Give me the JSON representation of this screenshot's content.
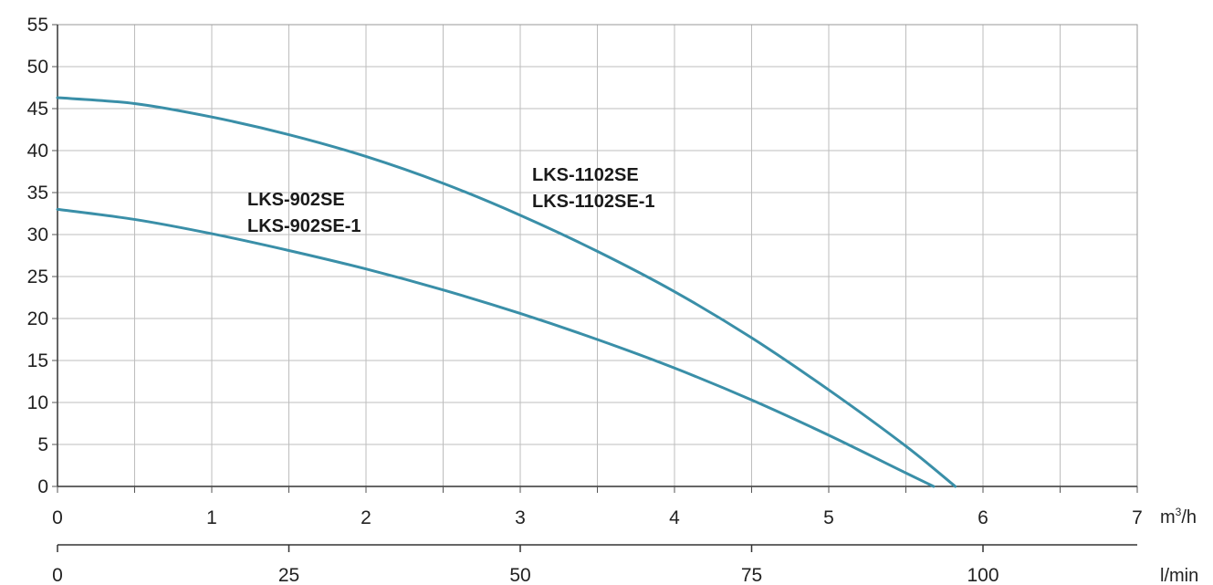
{
  "chart_data": {
    "type": "line",
    "title": "",
    "xlabel": "m³/h",
    "ylabel": "",
    "xlim": [
      0,
      7
    ],
    "ylim": [
      0,
      55
    ],
    "grid": true,
    "line_color": "#3a8fa8",
    "grid_color": "#bdbdbd",
    "y_ticks": [
      "0",
      "5",
      "10",
      "15",
      "20",
      "25",
      "30",
      "35",
      "40",
      "45",
      "50",
      "55"
    ],
    "x_ticks": [
      "0",
      "1",
      "2",
      "3",
      "4",
      "5",
      "6",
      "7"
    ],
    "x_unit_base": "m",
    "x_unit_sup": "3",
    "x_unit_tail": "/h",
    "secondary_axis": {
      "label": "l/min",
      "ticks": [
        "0",
        "25",
        "50",
        "75",
        "100"
      ],
      "values": [
        0,
        25,
        50,
        75,
        100
      ]
    },
    "series": [
      {
        "labels": [
          "LKS-1102SE",
          "LKS-1102SE-1"
        ],
        "x": [
          0,
          0.5,
          1,
          1.5,
          2,
          2.5,
          3,
          3.5,
          4,
          4.5,
          5,
          5.5,
          5.82
        ],
        "y": [
          46.3,
          45.6,
          44.0,
          41.9,
          39.3,
          36.1,
          32.3,
          28.0,
          23.2,
          17.7,
          11.5,
          4.8,
          0
        ]
      },
      {
        "labels": [
          "LKS-902SE",
          "LKS-902SE-1"
        ],
        "x": [
          0,
          0.5,
          1,
          1.5,
          2,
          2.5,
          3,
          3.5,
          4,
          4.5,
          5,
          5.5,
          5.68
        ],
        "y": [
          33.0,
          31.8,
          30.1,
          28.1,
          25.9,
          23.4,
          20.6,
          17.5,
          14.1,
          10.3,
          6.1,
          1.6,
          0
        ]
      }
    ]
  }
}
